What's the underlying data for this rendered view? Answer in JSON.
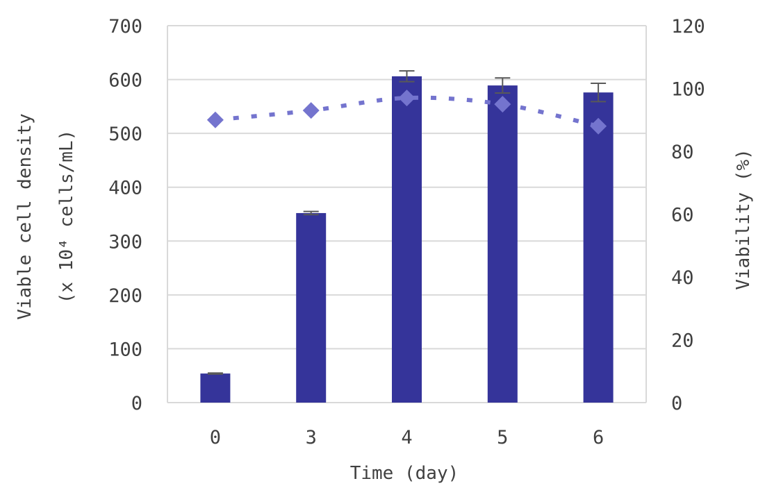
{
  "chart_data": {
    "type": "bar",
    "categories": [
      "0",
      "3",
      "4",
      "5",
      "6"
    ],
    "series": [
      {
        "kind": "bar",
        "axis": "left",
        "values": [
          54,
          352,
          606,
          589,
          576
        ],
        "error": [
          1,
          3,
          10,
          14,
          17
        ],
        "color": "#35349A"
      },
      {
        "kind": "line",
        "axis": "right",
        "style": "dotted",
        "marker": "diamond",
        "values": [
          90,
          93,
          97,
          95,
          88
        ],
        "color": "#7474CE"
      }
    ],
    "xlabel": "Time (day)",
    "ylabel_left_line1": "Viable cell density",
    "ylabel_left_line2": "(x 10⁴ cells/mL)",
    "ylabel_right": "Viability (%)",
    "ylim_left": [
      0,
      700
    ],
    "yticks_left": [
      "0",
      "100",
      "200",
      "300",
      "400",
      "500",
      "600",
      "700"
    ],
    "ylim_right": [
      0,
      120
    ],
    "yticks_right": [
      "0",
      "20",
      "40",
      "60",
      "80",
      "100",
      "120"
    ],
    "grid": true,
    "error_bar_color": "#595959",
    "grid_color": "#D9D9D9"
  }
}
